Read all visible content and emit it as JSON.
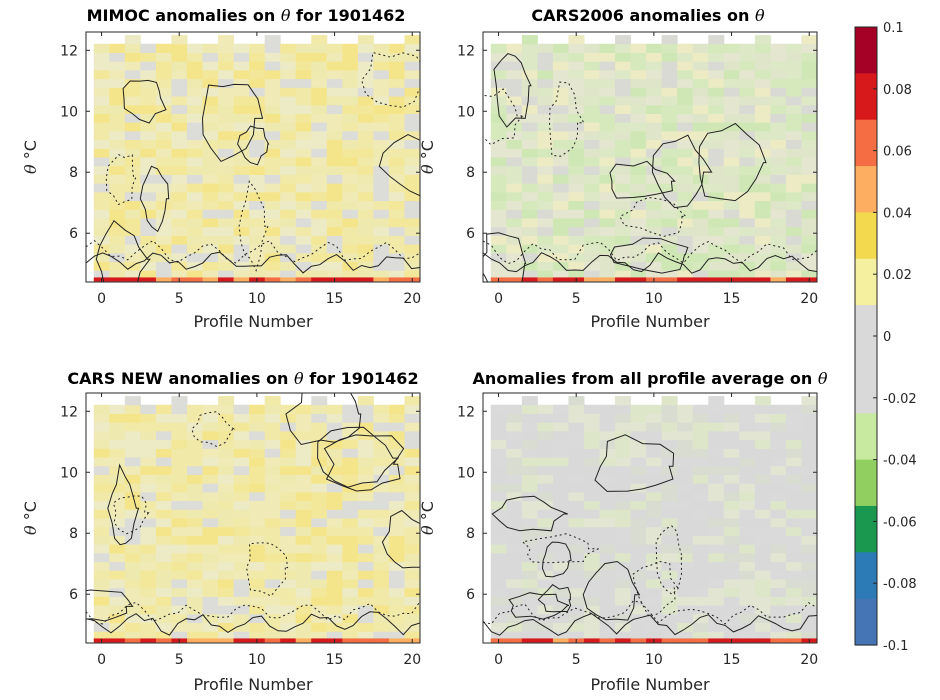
{
  "figure": {
    "colorbar": {
      "min": -0.1,
      "max": 0.1,
      "ticks": [
        "0.1",
        "0.08",
        "0.06",
        "0.04",
        "0.02",
        "0",
        "-0.02",
        "-0.04",
        "-0.06",
        "-0.08",
        "-0.1"
      ],
      "tick_values": [
        0.1,
        0.08,
        0.06,
        0.04,
        0.02,
        0,
        -0.02,
        -0.04,
        -0.06,
        -0.08,
        -0.1
      ],
      "colormap": [
        "#a50026",
        "#d7191c",
        "#f46d43",
        "#fdae61",
        "#f2d94e",
        "#f5f0a0",
        "#d9d9d9",
        "#d9d9d9",
        "#c7e9a0",
        "#91cf60",
        "#1a9850",
        "#2c7bb6",
        "#4575b4"
      ]
    }
  },
  "chart_data": [
    {
      "type": "heatmap",
      "title_prefix": "MIMOC anomalies on ",
      "title_symbol": "θ",
      "title_suffix": "  for 1901462",
      "xlabel": "Profile Number",
      "ylabel_symbol": "θ",
      "ylabel_unit": "°C",
      "xlim": [
        -1,
        20.5
      ],
      "ylim": [
        4.4,
        12.6
      ],
      "xticks": [
        0,
        5,
        10,
        15,
        20
      ],
      "yticks": [
        6,
        8,
        10,
        12
      ],
      "dominant_anomaly": 0.01,
      "pattern": "positive"
    },
    {
      "type": "heatmap",
      "title_prefix": "CARS2006 anomalies on ",
      "title_symbol": "θ",
      "title_suffix": "",
      "xlabel": "Profile Number",
      "ylabel_symbol": "θ",
      "ylabel_unit": "°C",
      "xlim": [
        -1,
        20.5
      ],
      "ylim": [
        4.4,
        12.6
      ],
      "xticks": [
        0,
        5,
        10,
        15,
        20
      ],
      "yticks": [
        6,
        8,
        10,
        12
      ],
      "dominant_anomaly": -0.01,
      "pattern": "negative"
    },
    {
      "type": "heatmap",
      "title_prefix": "CARS NEW anomalies on ",
      "title_symbol": "θ",
      "title_suffix": " for 1901462",
      "xlabel": "Profile Number",
      "ylabel_symbol": "θ",
      "ylabel_unit": "°C",
      "xlim": [
        -1,
        20.5
      ],
      "ylim": [
        4.4,
        12.6
      ],
      "xticks": [
        0,
        5,
        10,
        15,
        20
      ],
      "yticks": [
        6,
        8,
        10,
        12
      ],
      "dominant_anomaly": 0.01,
      "pattern": "positive"
    },
    {
      "type": "heatmap",
      "title_prefix": "Anomalies from all profile average on ",
      "title_symbol": "θ",
      "title_suffix": "",
      "xlabel": "Profile Number",
      "ylabel_symbol": "θ",
      "ylabel_unit": "°C",
      "xlim": [
        -1,
        20.5
      ],
      "ylim": [
        4.4,
        12.6
      ],
      "xticks": [
        0,
        5,
        10,
        15,
        20
      ],
      "yticks": [
        6,
        8,
        10,
        12
      ],
      "dominant_anomaly": 0.0,
      "pattern": "neutral"
    }
  ]
}
